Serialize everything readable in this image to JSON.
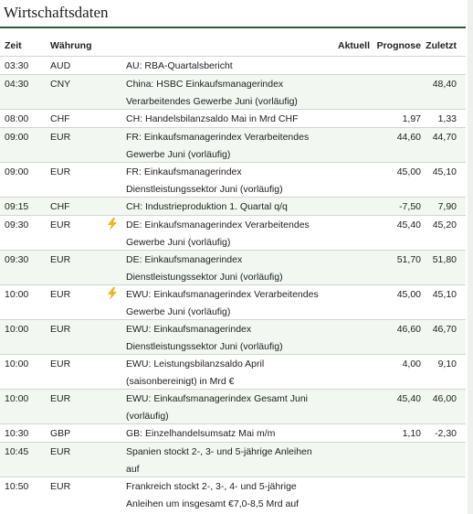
{
  "title": "Wirtschaftsdaten",
  "columns": {
    "time": "Zeit",
    "currency": "Währung",
    "actual": "Aktuell",
    "forecast": "Prognose",
    "last": "Zuletzt"
  },
  "rows": [
    {
      "time": "03:30",
      "currency": "AUD",
      "icon": "",
      "event_l1": "AU: RBA-Quartalsbericht",
      "event_l2": "",
      "actual": "",
      "forecast": "",
      "last": ""
    },
    {
      "time": "04:30",
      "currency": "CNY",
      "icon": "",
      "event_l1": "China: HSBC Einkaufsmanagerindex",
      "event_l2": "Verarbeitendes Gewerbe Juni (vorläufig)",
      "actual": "",
      "forecast": "",
      "last": "48,40"
    },
    {
      "time": "08:00",
      "currency": "CHF",
      "icon": "",
      "event_l1": "CH: Handelsbilanzsaldo Mai in Mrd CHF",
      "event_l2": "",
      "actual": "",
      "forecast": "1,97",
      "last": "1,33"
    },
    {
      "time": "09:00",
      "currency": "EUR",
      "icon": "",
      "event_l1": "FR: Einkaufsmanagerindex Verarbeitendes",
      "event_l2": "Gewerbe Juni (vorläufig)",
      "actual": "",
      "forecast": "44,60",
      "last": "44,70"
    },
    {
      "time": "09:00",
      "currency": "EUR",
      "icon": "",
      "event_l1": "FR: Einkaufsmanagerindex",
      "event_l2": "Dienstleistungssektor Juni (vorläufig)",
      "actual": "",
      "forecast": "45,00",
      "last": "45,10"
    },
    {
      "time": "09:15",
      "currency": "CHF",
      "icon": "",
      "event_l1": "CH: Industrieproduktion 1. Quartal q/q",
      "event_l2": "",
      "actual": "",
      "forecast": "-7,50",
      "last": "7,90"
    },
    {
      "time": "09:30",
      "currency": "EUR",
      "icon": "lightning-icon",
      "event_l1": "DE: Einkaufsmanagerindex Verarbeitendes",
      "event_l2": "Gewerbe Juni (vorläufig)",
      "actual": "",
      "forecast": "45,40",
      "last": "45,20"
    },
    {
      "time": "09:30",
      "currency": "EUR",
      "icon": "",
      "event_l1": "DE: Einkaufsmanagerindex",
      "event_l2": "Dienstleistungssektor Juni (vorläufig)",
      "actual": "",
      "forecast": "51,70",
      "last": "51,80"
    },
    {
      "time": "10:00",
      "currency": "EUR",
      "icon": "lightning-icon",
      "event_l1": "EWU: Einkaufsmanagerindex Verarbeitendes",
      "event_l2": "Gewerbe Juni (vorläufig)",
      "actual": "",
      "forecast": "45,00",
      "last": "45,10"
    },
    {
      "time": "10:00",
      "currency": "EUR",
      "icon": "",
      "event_l1": "EWU: Einkaufsmanagerindex",
      "event_l2": "Dienstleistungssektor Juni (vorläufig)",
      "actual": "",
      "forecast": "46,60",
      "last": "46,70"
    },
    {
      "time": "10:00",
      "currency": "EUR",
      "icon": "",
      "event_l1": "EWU: Leistungsbilanzsaldo April",
      "event_l2": "(saisonbereinigt) in Mrd €",
      "actual": "",
      "forecast": "4,00",
      "last": "9,10"
    },
    {
      "time": "10:00",
      "currency": "EUR",
      "icon": "",
      "event_l1": "EWU: Einkaufsmanagerindex Gesamt Juni",
      "event_l2": "(vorläufig)",
      "actual": "",
      "forecast": "45,40",
      "last": "46,00"
    },
    {
      "time": "10:30",
      "currency": "GBP",
      "icon": "",
      "event_l1": "GB: Einzelhandelsumsatz Mai m/m",
      "event_l2": "",
      "actual": "",
      "forecast": "1,10",
      "last": "-2,30"
    },
    {
      "time": "10:45",
      "currency": "EUR",
      "icon": "",
      "event_l1": "Spanien stockt 2-, 3- und 5-jährige Anleihen",
      "event_l2": "auf",
      "actual": "",
      "forecast": "",
      "last": ""
    },
    {
      "time": "10:50",
      "currency": "EUR",
      "icon": "",
      "event_l1": "Frankreich stockt 2-, 3-, 4- und 5-jährige",
      "event_l2": "Anleihen um insgesamt €7,0-8,5 Mrd auf",
      "actual": "",
      "forecast": "",
      "last": ""
    }
  ]
}
